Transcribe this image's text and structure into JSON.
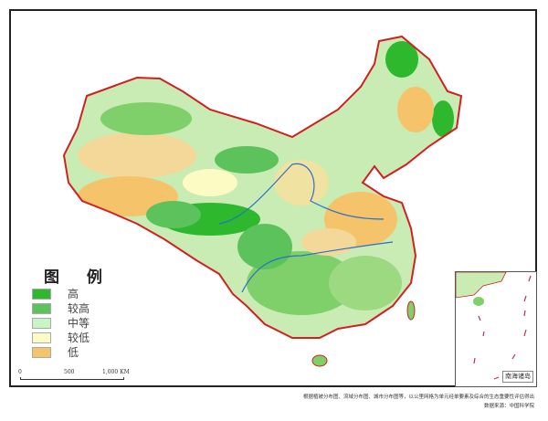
{
  "legend": {
    "title": "图 例",
    "items": [
      {
        "label": "高",
        "color": "#2db82d"
      },
      {
        "label": "较高",
        "color": "#5cc25c"
      },
      {
        "label": "中等",
        "color": "#c8f5c8"
      },
      {
        "label": "较低",
        "color": "#fdfbc4"
      },
      {
        "label": "低",
        "color": "#f5c36a"
      }
    ]
  },
  "scale_bar": {
    "ticks": [
      "0",
      "500",
      "1,000 KM"
    ]
  },
  "inset": {
    "label": "南海诸岛"
  },
  "footer": {
    "line1": "根据植被分布图、流域分布图、城市分布图等，以公里网格为单元经单要素及综合的生态重要性评估得出",
    "line2": "数据来源：中国科学院"
  },
  "colors": {
    "border": "#d22020",
    "river": "#2a6fc9",
    "frame": "#222222"
  }
}
